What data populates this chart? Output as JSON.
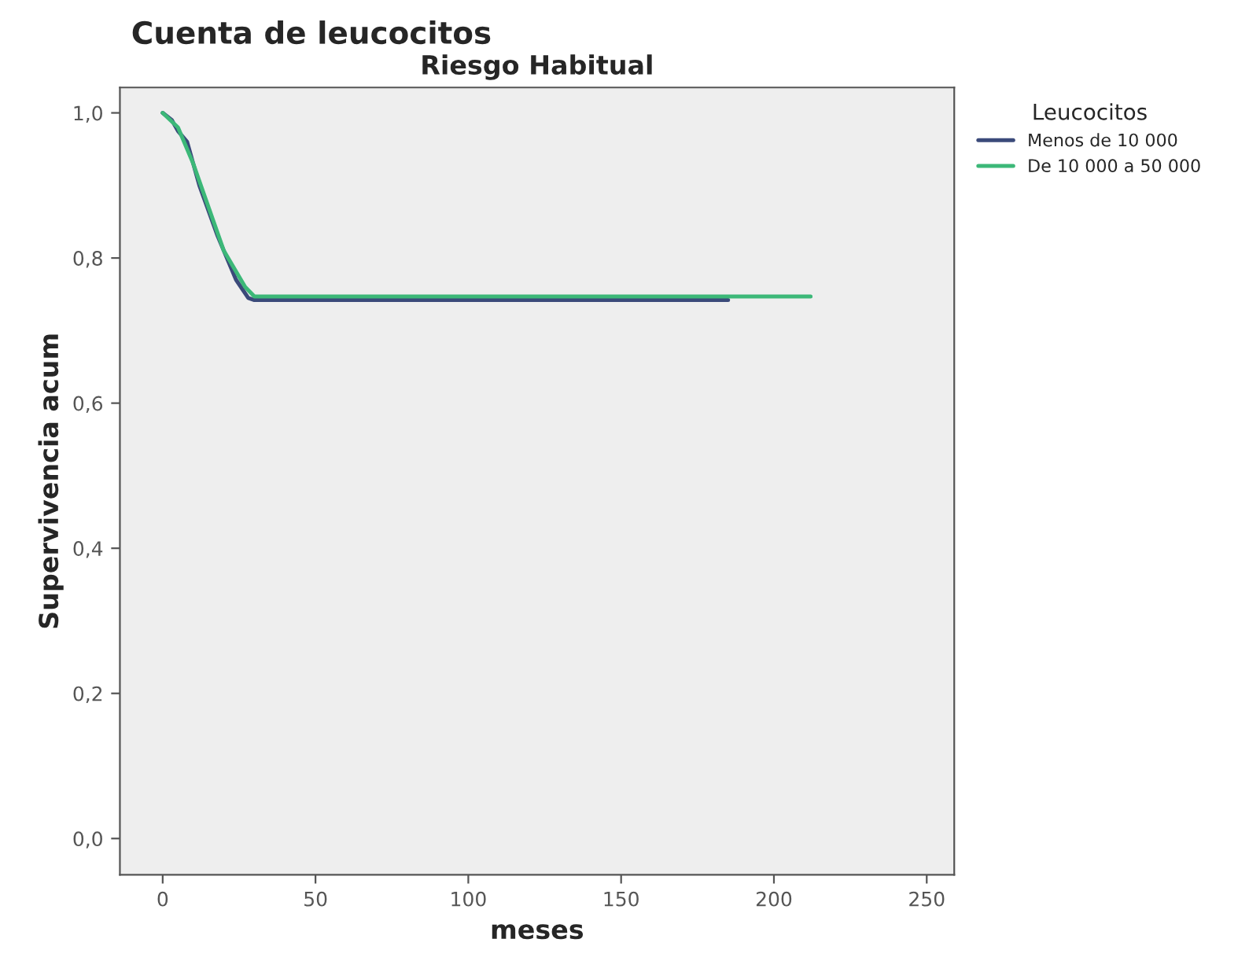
{
  "chart_data": {
    "type": "line",
    "title": "Cuenta de leucocitos",
    "subtitle": "Riesgo Habitual",
    "xlabel": "meses",
    "ylabel": "Supervivencia acum",
    "legend_title": "Leucocitos",
    "legend": "top right",
    "grid": false,
    "marker": "none",
    "line_style": "solid",
    "xlim": [
      -14,
      259
    ],
    "xticks": [
      0,
      50,
      100,
      150,
      200,
      250
    ],
    "ylim": [
      -0.05,
      1.035
    ],
    "yticks": [
      {
        "value": 0,
        "label": "0,0"
      },
      {
        "value": 0.2,
        "label": "0,2"
      },
      {
        "value": 0.4,
        "label": "0,4"
      },
      {
        "value": 0.6,
        "label": "0,6"
      },
      {
        "value": 0.8,
        "label": "0,8"
      },
      {
        "value": 1.0,
        "label": "1,0"
      }
    ],
    "series": [
      {
        "name": "Menos de 10 000",
        "color": "#3b4a7a",
        "x": [
          0,
          3,
          5,
          8,
          12,
          18,
          24,
          28,
          30,
          185
        ],
        "values": [
          1.0,
          0.99,
          0.975,
          0.96,
          0.9,
          0.83,
          0.77,
          0.745,
          0.742,
          0.742
        ]
      },
      {
        "name": "De 10 000 a 50 000",
        "color": "#3cb878",
        "x": [
          0,
          5,
          10,
          20,
          27,
          30,
          212
        ],
        "values": [
          1.0,
          0.98,
          0.93,
          0.81,
          0.76,
          0.747,
          0.747
        ]
      }
    ]
  }
}
